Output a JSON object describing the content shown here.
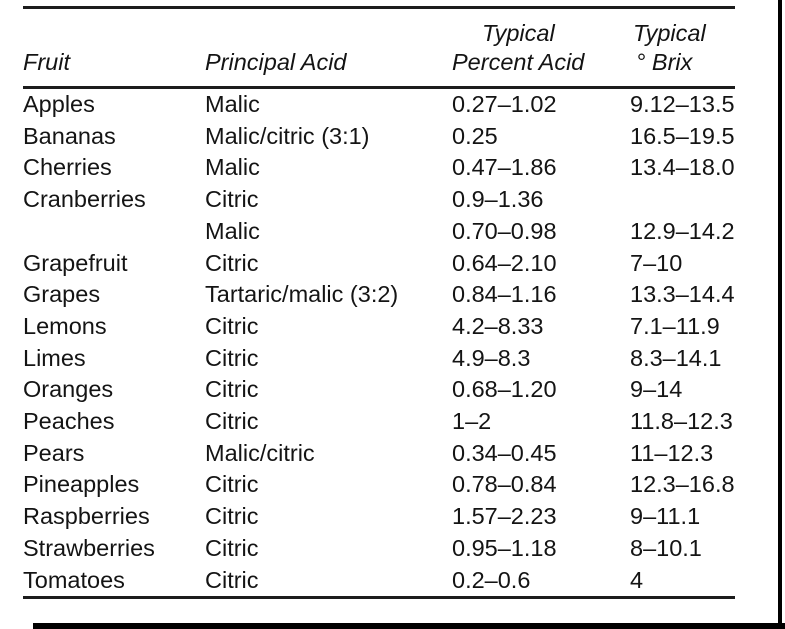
{
  "table": {
    "columns": [
      {
        "label_line1": "",
        "label_line2": "Fruit"
      },
      {
        "label_line1": "",
        "label_line2": "Principal Acid"
      },
      {
        "label_line1": "Typical",
        "label_line2": "Percent Acid"
      },
      {
        "label_line1": "Typical",
        "label_line2": "° Brix"
      }
    ],
    "rows": [
      [
        "Apples",
        "Malic",
        "0.27–1.02",
        "9.12–13.5"
      ],
      [
        "Bananas",
        "Malic/citric (3:1)",
        "0.25",
        "16.5–19.5"
      ],
      [
        "Cherries",
        "Malic",
        "0.47–1.86",
        "13.4–18.0"
      ],
      [
        "Cranberries",
        "Citric",
        "0.9–1.36",
        ""
      ],
      [
        "",
        "Malic",
        "0.70–0.98",
        "12.9–14.2"
      ],
      [
        "Grapefruit",
        "Citric",
        "0.64–2.10",
        "7–10"
      ],
      [
        "Grapes",
        "Tartaric/malic (3:2)",
        "0.84–1.16",
        "13.3–14.4"
      ],
      [
        "Lemons",
        "Citric",
        "4.2–8.33",
        "7.1–11.9"
      ],
      [
        "Limes",
        "Citric",
        "4.9–8.3",
        "8.3–14.1"
      ],
      [
        "Oranges",
        "Citric",
        "0.68–1.20",
        "9–14"
      ],
      [
        "Peaches",
        "Citric",
        "1–2",
        "11.8–12.3"
      ],
      [
        "Pears",
        "Malic/citric",
        "0.34–0.45",
        "11–12.3"
      ],
      [
        "Pineapples",
        "Citric",
        "0.78–0.84",
        "12.3–16.8"
      ],
      [
        "Raspberries",
        "Citric",
        "1.57–2.23",
        "9–11.1"
      ],
      [
        "Strawberries",
        "Citric",
        "0.95–1.18",
        "8–10.1"
      ],
      [
        "Tomatoes",
        "Citric",
        "0.2–0.6",
        "4"
      ]
    ],
    "cell_names": [
      "cell-fruit",
      "cell-principal-acid",
      "cell-percent-acid",
      "cell-brix"
    ]
  },
  "colors": {
    "background": "#ffffff",
    "text": "#141414",
    "rule": "#1c1c1c",
    "page_edge": "#000000"
  }
}
